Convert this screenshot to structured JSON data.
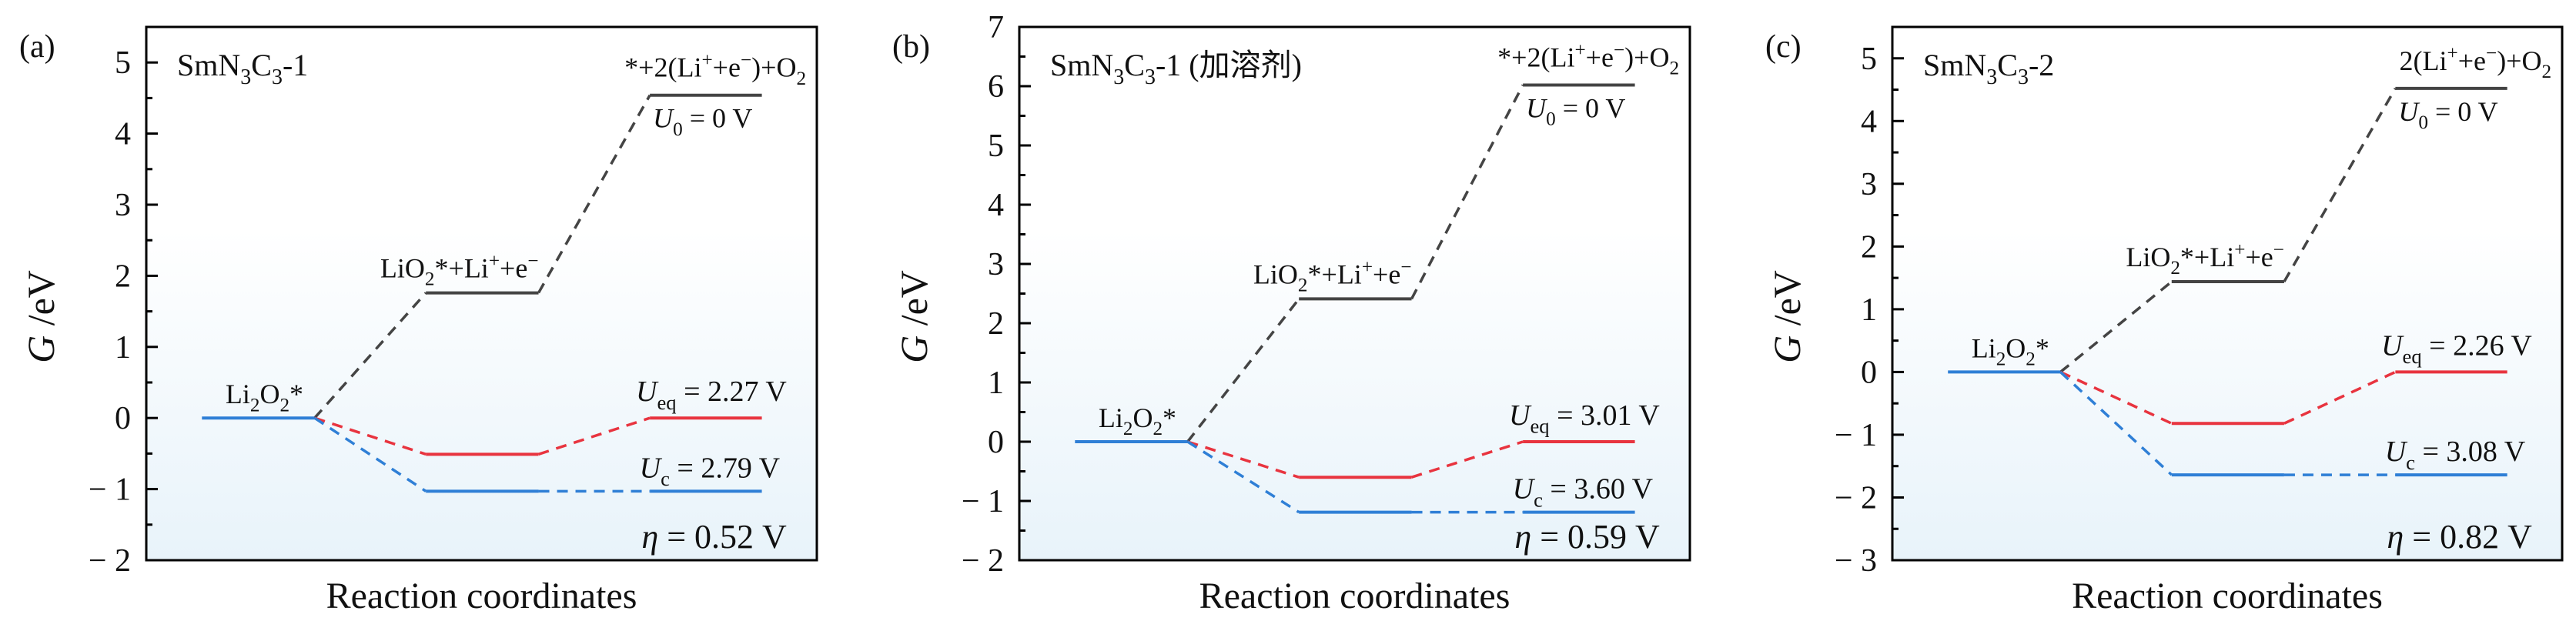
{
  "colors": {
    "equilibrium": "#e8343f",
    "limiting": "#2f7fd6",
    "zero_potential": "#444444",
    "frame": "#000000",
    "background_bottom": "#e8f3fa"
  },
  "chart_data": [
    {
      "type": "line",
      "panel_label": "(a)",
      "title": [
        [
          "SmN",
          ""
        ],
        [
          "3",
          "sub"
        ],
        [
          "C",
          ""
        ],
        [
          "3",
          "sub"
        ],
        [
          "-1",
          ""
        ]
      ],
      "title_text": "SmN3C3-1",
      "ylabel": [
        [
          "G",
          "i"
        ],
        [
          " /eV",
          ""
        ]
      ],
      "xlabel": "Reaction coordinates",
      "ylim": [
        -2,
        5.5
      ],
      "yticks": [
        -2,
        -1,
        0,
        1,
        2,
        3,
        4,
        5
      ],
      "grid": false,
      "states": [
        "Li2O2*",
        "LiO2*+Li++e-",
        "*+2(Li++e-)+O2"
      ],
      "series": [
        {
          "name": "U0 = 0 V",
          "values": [
            0,
            1.76,
            4.54
          ]
        },
        {
          "name": "Ueq = 2.27 V",
          "values": [
            0,
            -0.51,
            0
          ]
        },
        {
          "name": "Uc = 2.79 V",
          "values": [
            0,
            -1.03,
            -1.03
          ]
        }
      ],
      "labels": {
        "state1": [
          [
            "Li",
            ""
          ],
          [
            "2",
            "sub"
          ],
          [
            "O",
            ""
          ],
          [
            "2",
            "sub"
          ],
          [
            "*",
            ""
          ]
        ],
        "state2": [
          [
            "LiO",
            ""
          ],
          [
            "2",
            "sub"
          ],
          [
            "*+Li",
            ""
          ],
          [
            "+",
            "sup"
          ],
          [
            "+e",
            ""
          ],
          [
            "−",
            "sup"
          ]
        ],
        "state3": [
          [
            "*+2(Li",
            ""
          ],
          [
            "+",
            "sup"
          ],
          [
            "+e",
            ""
          ],
          [
            "−",
            "sup"
          ],
          [
            ")+O",
            ""
          ],
          [
            "2",
            "sub"
          ]
        ],
        "u0": [
          [
            "U",
            "i"
          ],
          [
            "0",
            "sub"
          ],
          [
            " = 0  V",
            ""
          ]
        ],
        "ueq": [
          [
            "U",
            "i"
          ],
          [
            "eq",
            "sub"
          ],
          [
            " = 2.27  V",
            ""
          ]
        ],
        "uc": [
          [
            "U",
            "i"
          ],
          [
            "c",
            "sub"
          ],
          [
            " = 2.79  V",
            ""
          ]
        ],
        "eta": [
          [
            "η",
            "i"
          ],
          [
            " = 0.52  V",
            ""
          ]
        ]
      }
    },
    {
      "type": "line",
      "panel_label": "(b)",
      "title": [
        [
          "SmN",
          ""
        ],
        [
          "3",
          "sub"
        ],
        [
          "C",
          ""
        ],
        [
          "3",
          "sub"
        ],
        [
          "-1 (加溶剂)",
          ""
        ]
      ],
      "title_text": "SmN3C3-1 (加溶剂)",
      "ylabel": [
        [
          "G",
          "i"
        ],
        [
          " /eV",
          ""
        ]
      ],
      "xlabel": "Reaction coordinates",
      "ylim": [
        -2,
        7
      ],
      "yticks": [
        -2,
        -1,
        0,
        1,
        2,
        3,
        4,
        5,
        6,
        7
      ],
      "grid": false,
      "states": [
        "Li2O2*",
        "LiO2*+Li++e-",
        "*+2(Li++e-)+O2"
      ],
      "series": [
        {
          "name": "U0 = 0 V",
          "values": [
            0,
            2.41,
            6.02
          ]
        },
        {
          "name": "Ueq = 3.01 V",
          "values": [
            0,
            -0.6,
            0
          ]
        },
        {
          "name": "Uc = 3.60 V",
          "values": [
            0,
            -1.19,
            -1.19
          ]
        }
      ],
      "labels": {
        "state1": [
          [
            "Li",
            ""
          ],
          [
            "2",
            "sub"
          ],
          [
            "O",
            ""
          ],
          [
            "2",
            "sub"
          ],
          [
            "*",
            ""
          ]
        ],
        "state2": [
          [
            "LiO",
            ""
          ],
          [
            "2",
            "sub"
          ],
          [
            "*+Li",
            ""
          ],
          [
            "+",
            "sup"
          ],
          [
            "+e",
            ""
          ],
          [
            "−",
            "sup"
          ]
        ],
        "state3": [
          [
            "*+2(Li",
            ""
          ],
          [
            "+",
            "sup"
          ],
          [
            "+e",
            ""
          ],
          [
            "−",
            "sup"
          ],
          [
            ")+O",
            ""
          ],
          [
            "2",
            "sub"
          ]
        ],
        "u0": [
          [
            "U",
            "i"
          ],
          [
            "0",
            "sub"
          ],
          [
            " = 0  V",
            ""
          ]
        ],
        "ueq": [
          [
            "U",
            "i"
          ],
          [
            "eq",
            "sub"
          ],
          [
            " = 3.01  V",
            ""
          ]
        ],
        "uc": [
          [
            "U",
            "i"
          ],
          [
            "c",
            "sub"
          ],
          [
            " = 3.60  V",
            ""
          ]
        ],
        "eta": [
          [
            "η",
            "i"
          ],
          [
            " = 0.59  V",
            ""
          ]
        ]
      }
    },
    {
      "type": "line",
      "panel_label": "(c)",
      "title": [
        [
          "SmN",
          ""
        ],
        [
          "3",
          "sub"
        ],
        [
          "C",
          ""
        ],
        [
          "3",
          "sub"
        ],
        [
          "-2",
          ""
        ]
      ],
      "title_text": "SmN3C3-2",
      "ylabel": [
        [
          "G",
          "i"
        ],
        [
          " /eV",
          ""
        ]
      ],
      "xlabel": "Reaction coordinates",
      "ylim": [
        -3,
        5.5
      ],
      "yticks": [
        -3,
        -2,
        -1,
        0,
        1,
        2,
        3,
        4,
        5
      ],
      "grid": false,
      "states": [
        "Li2O2*",
        "LiO2*+Li++e-",
        "2(Li++e-)+O2"
      ],
      "series": [
        {
          "name": "U0 = 0 V",
          "values": [
            0,
            1.44,
            4.52
          ]
        },
        {
          "name": "Ueq = 2.26 V",
          "values": [
            0,
            -0.82,
            0
          ]
        },
        {
          "name": "Uc = 3.08 V",
          "values": [
            0,
            -1.64,
            -1.64
          ]
        }
      ],
      "labels": {
        "state1": [
          [
            "Li",
            ""
          ],
          [
            "2",
            "sub"
          ],
          [
            "O",
            ""
          ],
          [
            "2",
            "sub"
          ],
          [
            "*",
            ""
          ]
        ],
        "state2": [
          [
            "LiO",
            ""
          ],
          [
            "2",
            "sub"
          ],
          [
            "*+Li",
            ""
          ],
          [
            "+",
            "sup"
          ],
          [
            "+e",
            ""
          ],
          [
            "−",
            "sup"
          ]
        ],
        "state3": [
          [
            "2(Li",
            ""
          ],
          [
            "+",
            "sup"
          ],
          [
            "+e",
            ""
          ],
          [
            "−",
            "sup"
          ],
          [
            ")+O",
            ""
          ],
          [
            "2",
            "sub"
          ]
        ],
        "u0": [
          [
            "U",
            "i"
          ],
          [
            "0",
            "sub"
          ],
          [
            " = 0  V",
            ""
          ]
        ],
        "ueq": [
          [
            "U",
            "i"
          ],
          [
            "eq",
            "sub"
          ],
          [
            " = 2.26  V",
            ""
          ]
        ],
        "uc": [
          [
            "U",
            "i"
          ],
          [
            "c",
            "sub"
          ],
          [
            " = 3.08  V",
            ""
          ]
        ],
        "eta": [
          [
            "η",
            "i"
          ],
          [
            " = 0.82  V",
            ""
          ]
        ]
      }
    }
  ]
}
